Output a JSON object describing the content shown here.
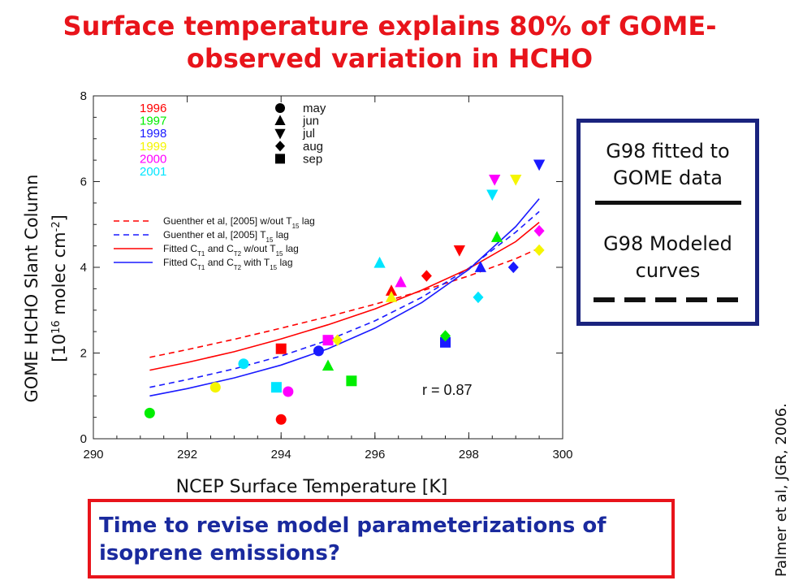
{
  "title": {
    "line1": "Surface temperature explains 80% of  GOME-",
    "line2": "observed variation in HCHO"
  },
  "chart_data": {
    "type": "scatter",
    "xlabel": "NCEP Surface Temperature [K]",
    "ylabel_line1": "GOME HCHO Slant Column",
    "ylabel_line2": "[10^16 molec cm^-2]",
    "xlim": [
      290,
      300
    ],
    "ylim": [
      0,
      8
    ],
    "xticks": [
      290,
      292,
      294,
      296,
      298,
      300
    ],
    "yticks": [
      0,
      2,
      4,
      6,
      8
    ],
    "annotation": "r = 0.87",
    "year_legend": [
      {
        "label": "1996",
        "color": "#ff0000"
      },
      {
        "label": "1997",
        "color": "#00ee00"
      },
      {
        "label": "1998",
        "color": "#1a1aff"
      },
      {
        "label": "1999",
        "color": "#f5f500"
      },
      {
        "label": "2000",
        "color": "#ff00ff"
      },
      {
        "label": "2001",
        "color": "#00e5ff"
      }
    ],
    "month_legend": [
      {
        "label": "may",
        "marker": "circle"
      },
      {
        "label": "jun",
        "marker": "triangle-up"
      },
      {
        "label": "jul",
        "marker": "triangle-down"
      },
      {
        "label": "aug",
        "marker": "diamond"
      },
      {
        "label": "sep",
        "marker": "square"
      }
    ],
    "curve_legend": [
      {
        "label": "Guenther et al, [2005] w/out T15 lag",
        "color": "#ff0000",
        "style": "dashed"
      },
      {
        "label": "Guenther et al, [2005] T15 lag",
        "color": "#1a1aff",
        "style": "dashed"
      },
      {
        "label": "Fitted CT1 and CT2 w/out T15 lag",
        "color": "#ff0000",
        "style": "solid"
      },
      {
        "label": "Fitted CT1 and CT2 with T15 lag",
        "color": "#1a1aff",
        "style": "solid"
      }
    ],
    "curves": [
      {
        "color": "#ff0000",
        "style": "dashed",
        "x": [
          291.2,
          292,
          293,
          294,
          295,
          296,
          297,
          298,
          299,
          299.5
        ],
        "y": [
          1.9,
          2.08,
          2.32,
          2.58,
          2.85,
          3.14,
          3.45,
          3.8,
          4.2,
          4.45
        ]
      },
      {
        "color": "#1a1aff",
        "style": "dashed",
        "x": [
          291.2,
          292,
          293,
          294,
          295,
          296,
          297,
          298,
          299,
          299.5
        ],
        "y": [
          1.2,
          1.38,
          1.63,
          1.93,
          2.3,
          2.75,
          3.3,
          3.98,
          4.82,
          5.3
        ]
      },
      {
        "color": "#ff0000",
        "style": "solid",
        "x": [
          291.2,
          292,
          293,
          294,
          295,
          296,
          297,
          298,
          299,
          299.5
        ],
        "y": [
          1.6,
          1.78,
          2.03,
          2.33,
          2.66,
          3.03,
          3.47,
          3.97,
          4.6,
          5.05
        ]
      },
      {
        "color": "#1a1aff",
        "style": "solid",
        "x": [
          291.2,
          292,
          293,
          294,
          295,
          296,
          297,
          298,
          299,
          299.5
        ],
        "y": [
          1.0,
          1.17,
          1.42,
          1.72,
          2.1,
          2.58,
          3.18,
          3.95,
          4.95,
          5.6
        ]
      }
    ],
    "points": [
      {
        "x": 291.2,
        "y": 0.6,
        "color": "#00ee00",
        "marker": "circle"
      },
      {
        "x": 292.6,
        "y": 1.2,
        "color": "#f5f500",
        "marker": "circle"
      },
      {
        "x": 293.2,
        "y": 1.75,
        "color": "#00e5ff",
        "marker": "circle"
      },
      {
        "x": 294.0,
        "y": 0.45,
        "color": "#ff0000",
        "marker": "circle"
      },
      {
        "x": 294.15,
        "y": 1.1,
        "color": "#ff00ff",
        "marker": "circle"
      },
      {
        "x": 294.8,
        "y": 2.05,
        "color": "#1a1aff",
        "marker": "circle"
      },
      {
        "x": 293.9,
        "y": 1.2,
        "color": "#00e5ff",
        "marker": "square"
      },
      {
        "x": 294.0,
        "y": 2.1,
        "color": "#ff0000",
        "marker": "square"
      },
      {
        "x": 295.5,
        "y": 1.35,
        "color": "#00ee00",
        "marker": "square"
      },
      {
        "x": 295.0,
        "y": 2.3,
        "color": "#ff00ff",
        "marker": "square"
      },
      {
        "x": 295.2,
        "y": 2.3,
        "color": "#f5f500",
        "marker": "diamond"
      },
      {
        "x": 297.5,
        "y": 2.25,
        "color": "#1a1aff",
        "marker": "square"
      },
      {
        "x": 295.0,
        "y": 1.7,
        "color": "#00ee00",
        "marker": "triangle-up"
      },
      {
        "x": 296.1,
        "y": 4.1,
        "color": "#00e5ff",
        "marker": "triangle-up"
      },
      {
        "x": 296.35,
        "y": 3.45,
        "color": "#ff0000",
        "marker": "triangle-up"
      },
      {
        "x": 296.35,
        "y": 3.3,
        "color": "#f5f500",
        "marker": "triangle-up"
      },
      {
        "x": 296.55,
        "y": 3.65,
        "color": "#ff00ff",
        "marker": "triangle-up"
      },
      {
        "x": 297.5,
        "y": 2.4,
        "color": "#00ee00",
        "marker": "diamond"
      },
      {
        "x": 297.1,
        "y": 3.8,
        "color": "#ff0000",
        "marker": "diamond"
      },
      {
        "x": 298.2,
        "y": 3.3,
        "color": "#00e5ff",
        "marker": "diamond"
      },
      {
        "x": 298.95,
        "y": 4.0,
        "color": "#1a1aff",
        "marker": "diamond"
      },
      {
        "x": 299.5,
        "y": 4.4,
        "color": "#f5f500",
        "marker": "diamond"
      },
      {
        "x": 299.5,
        "y": 4.85,
        "color": "#ff00ff",
        "marker": "diamond"
      },
      {
        "x": 297.8,
        "y": 4.4,
        "color": "#ff0000",
        "marker": "triangle-down"
      },
      {
        "x": 298.25,
        "y": 4.0,
        "color": "#1a1aff",
        "marker": "triangle-up"
      },
      {
        "x": 298.5,
        "y": 5.7,
        "color": "#00e5ff",
        "marker": "triangle-down"
      },
      {
        "x": 298.55,
        "y": 6.05,
        "color": "#ff00ff",
        "marker": "triangle-down"
      },
      {
        "x": 298.6,
        "y": 4.7,
        "color": "#00ee00",
        "marker": "triangle-up"
      },
      {
        "x": 299.0,
        "y": 6.05,
        "color": "#f5f500",
        "marker": "triangle-down"
      },
      {
        "x": 299.5,
        "y": 6.4,
        "color": "#1a1aff",
        "marker": "triangle-down"
      }
    ]
  },
  "right_box": {
    "line1": "G98 fitted to",
    "line2": "GOME data",
    "line3": "G98 Modeled",
    "line4": "curves"
  },
  "bottom_box": {
    "line1": "Time to revise model parameterizations of",
    "line2": "isoprene emissions?"
  },
  "credit": "Palmer et al, JGR, 2006."
}
